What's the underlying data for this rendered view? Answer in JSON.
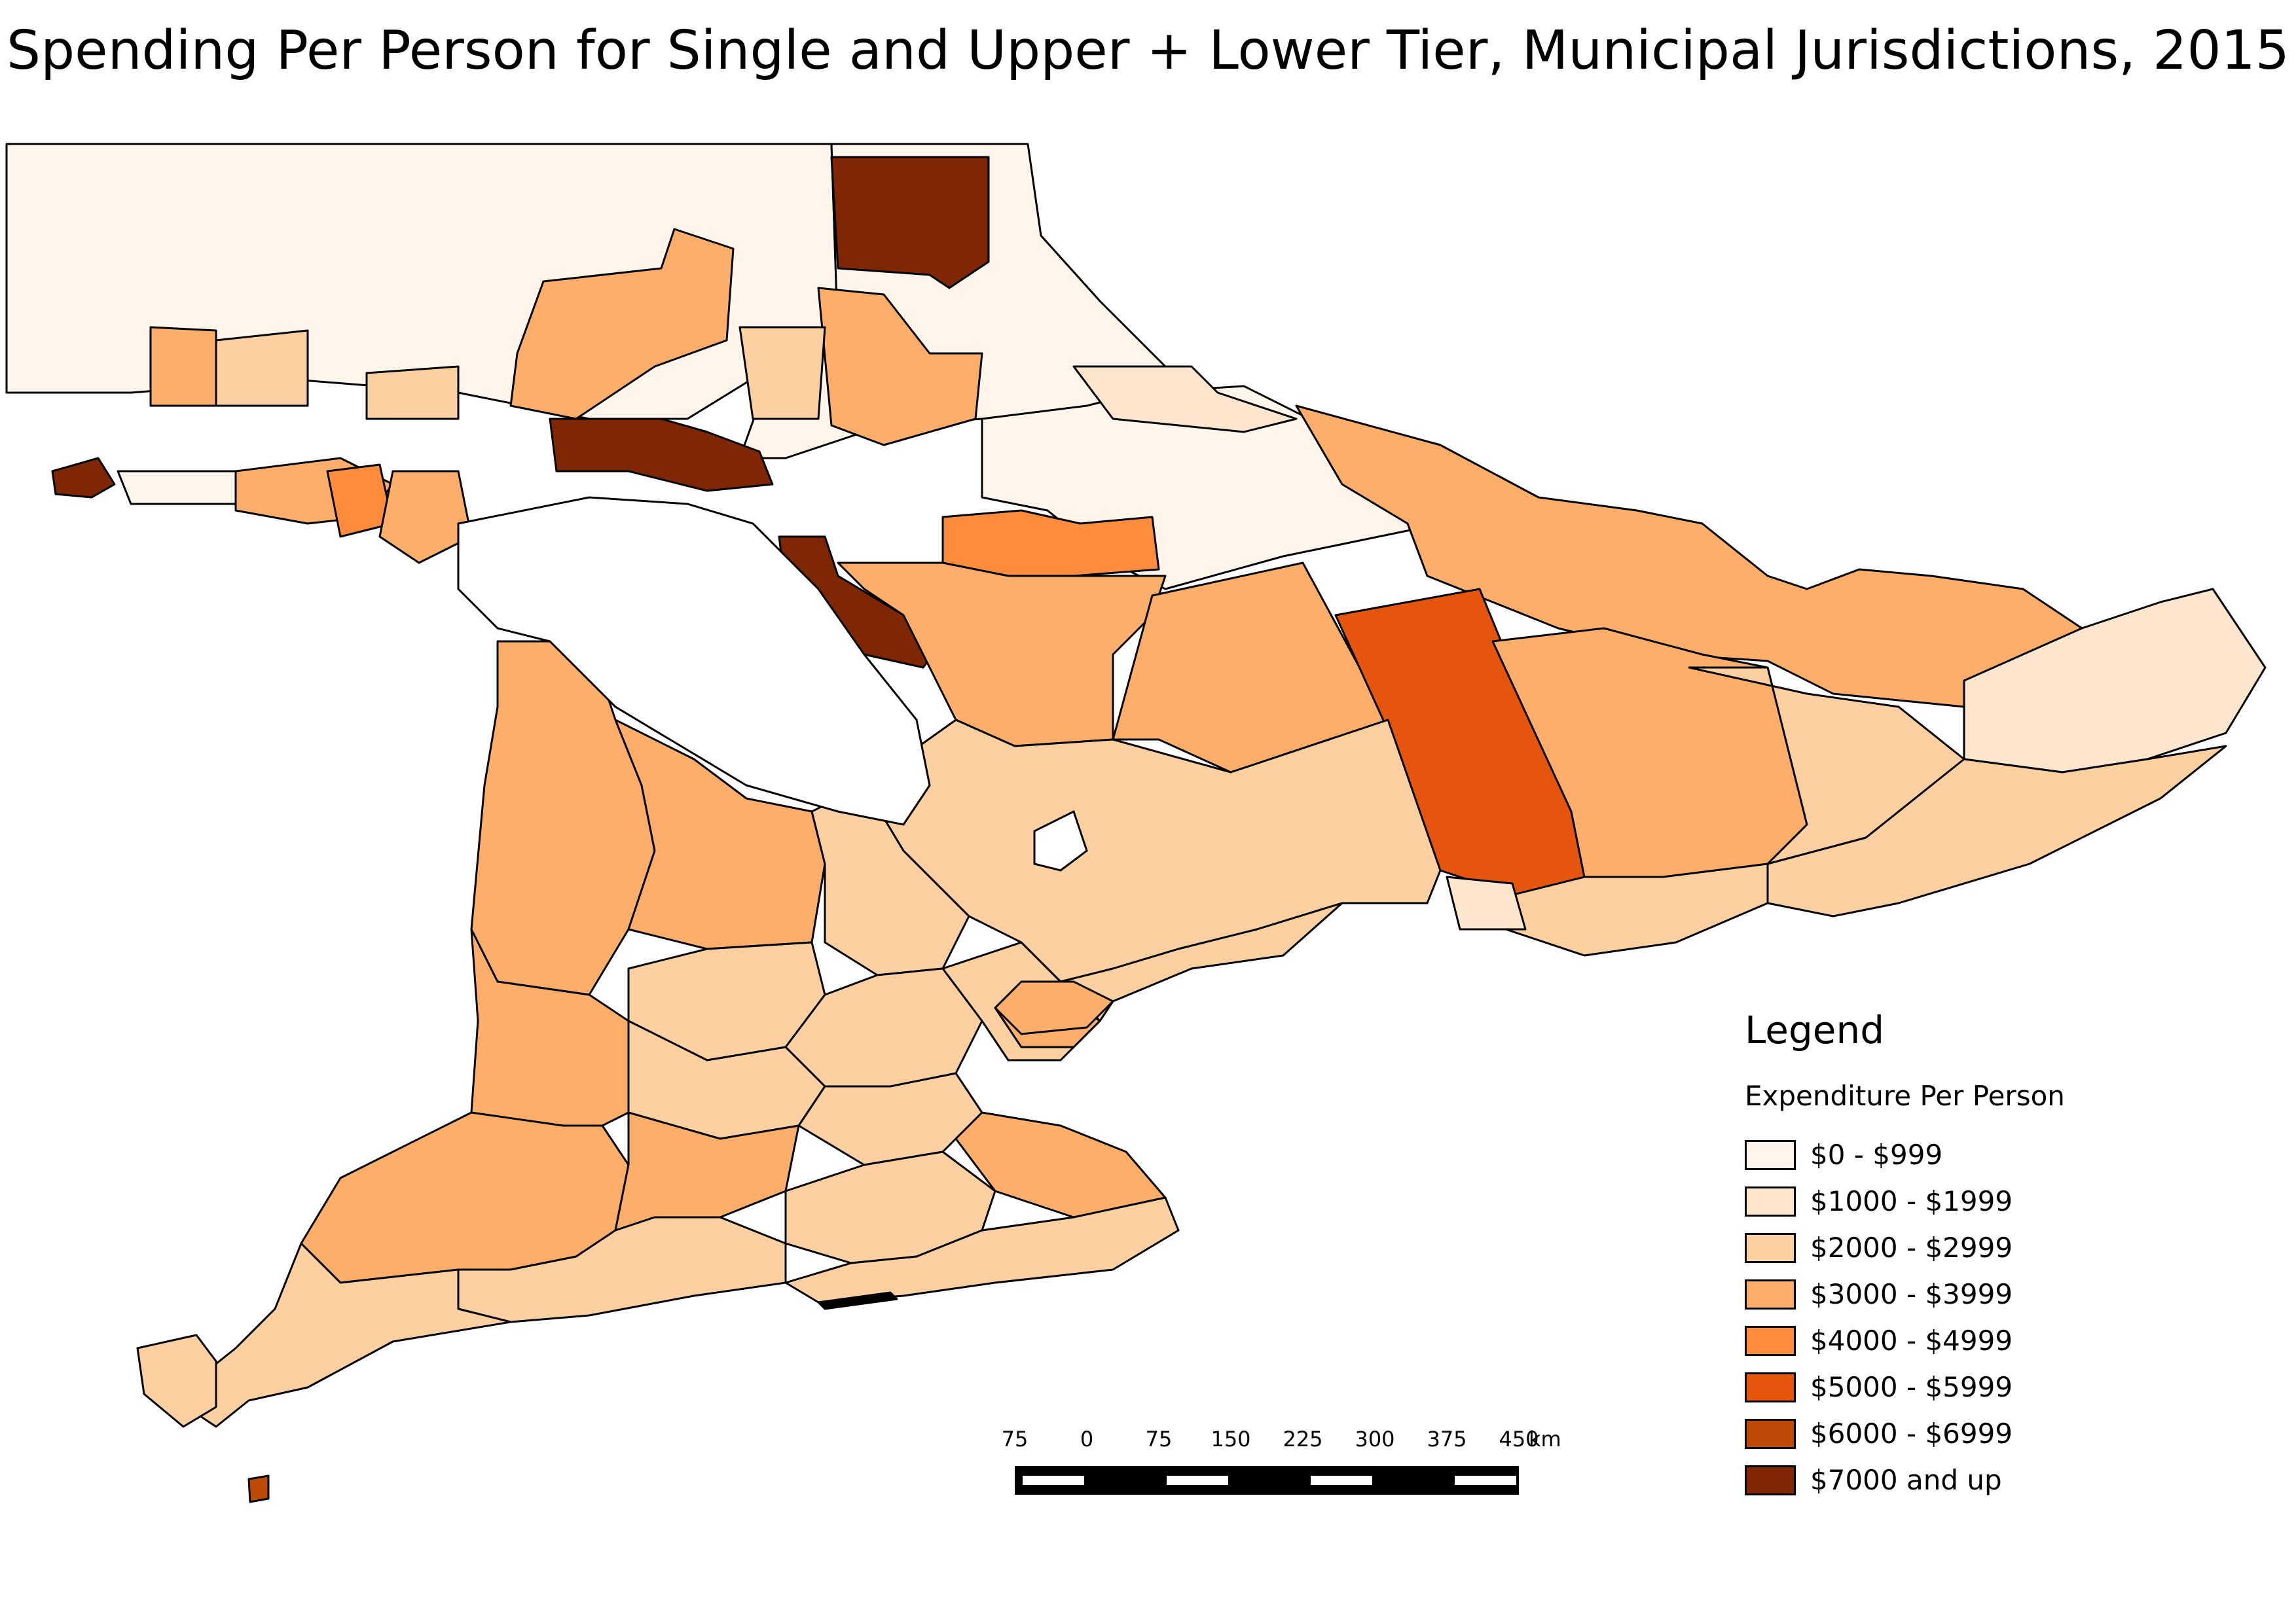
{
  "title": "Spending Per Person for Single and Upper + Lower Tier, Municipal Jurisdictions, 2015",
  "legend": {
    "title": "Legend",
    "subtitle": "Expenditure Per Person",
    "items": [
      {
        "label": "$0 - $999",
        "color": "#fff5eb"
      },
      {
        "label": "$1000 - $1999",
        "color": "#fee6ce"
      },
      {
        "label": "$2000 - $2999",
        "color": "#fdd0a2"
      },
      {
        "label": "$3000 - $3999",
        "color": "#fdae6b"
      },
      {
        "label": "$4000 - $4999",
        "color": "#fd8d3c"
      },
      {
        "label": "$5000 - $5999",
        "color": "#e6550d"
      },
      {
        "label": "$6000 - $6999",
        "color": "#bd4b06"
      },
      {
        "label": "$7000 and up",
        "color": "#7f2704"
      }
    ]
  },
  "scale_bar": {
    "ticks": [
      "75",
      "0",
      "75",
      "150",
      "225",
      "300",
      "375",
      "450"
    ],
    "unit": "km"
  }
}
